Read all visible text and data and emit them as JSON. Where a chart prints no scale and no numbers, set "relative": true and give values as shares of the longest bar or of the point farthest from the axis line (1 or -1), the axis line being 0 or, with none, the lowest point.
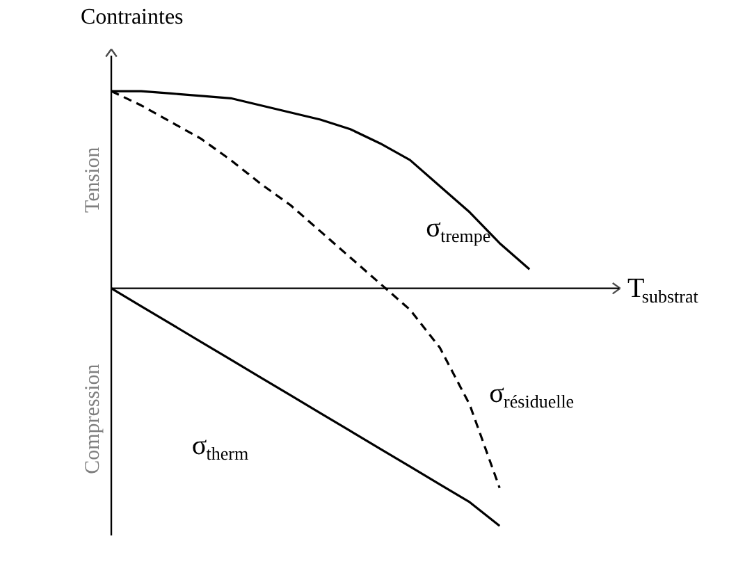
{
  "chart_data": {
    "type": "line",
    "relative": true,
    "xlabel": "T$_{substrat}$",
    "ylabel": "Contraintes",
    "annotations": [
      "Tension",
      "Compression"
    ],
    "categories": [
      null,
      null,
      null,
      null,
      null,
      null,
      null,
      null,
      null,
      null,
      null,
      null,
      null,
      null,
      null
    ],
    "series": [
      {
        "name": "σ$_{trempe}$",
        "color": "#000000",
        "line_style": "solid",
        "values": [
          0.83,
          0.83,
          0.82,
          0.81,
          0.8,
          0.77,
          0.74,
          0.71,
          0.67,
          0.61,
          0.54,
          0.43,
          0.32,
          0.19,
          0.08
        ]
      },
      {
        "name": "σ$_{résiduelle}$",
        "color": "#000000",
        "line_style": "dashed",
        "values": [
          0.83,
          0.77,
          0.7,
          0.63,
          0.54,
          0.44,
          0.35,
          0.24,
          0.13,
          0.02,
          -0.09,
          -0.25,
          -0.49,
          -0.84,
          null
        ]
      },
      {
        "name": "σ$_{therm}$",
        "color": "#000000",
        "line_style": "solid",
        "values": [
          0,
          -0.075,
          -0.15,
          -0.225,
          -0.3,
          -0.375,
          -0.45,
          -0.525,
          -0.6,
          -0.675,
          -0.75,
          -0.825,
          -0.9,
          -1,
          null
        ]
      }
    ]
  }
}
